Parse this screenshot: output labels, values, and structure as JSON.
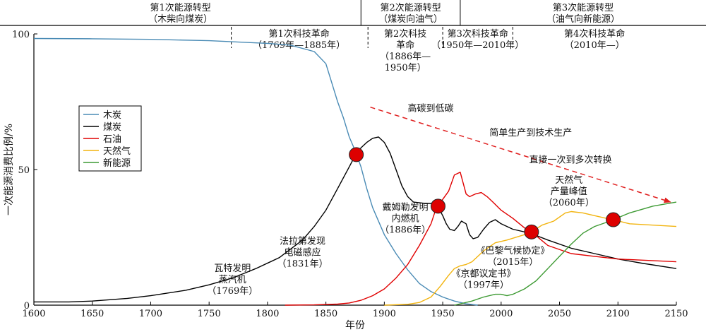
{
  "chart_data": {
    "type": "line",
    "xlabel": "年份",
    "ylabel": "一次能源消费比例/%",
    "xlim": [
      1600,
      2150
    ],
    "ylim": [
      0,
      100
    ],
    "xticks": [
      1600,
      1650,
      1700,
      1750,
      1800,
      1850,
      1900,
      1950,
      2000,
      2050,
      2100,
      2150
    ],
    "yticks": [
      0,
      50,
      100
    ],
    "legend_position": "left",
    "transitions": [
      {
        "name": "第1次能源转型",
        "desc": "（木柴向煤炭）",
        "start": 1600,
        "end": 1880
      },
      {
        "name": "第2次能源转型",
        "desc": "（煤炭向油气）",
        "start": 1880,
        "end": 1965
      },
      {
        "name": "第3次能源转型",
        "desc": "（油气向新能源）",
        "start": 1965,
        "end": 2150
      }
    ],
    "revolutions": [
      {
        "lines": [
          "第1次科技革命",
          "（1769年—1885年）"
        ],
        "start": 1769,
        "end": 1885
      },
      {
        "lines": [
          "第2次科技",
          "革命",
          "（1886年—",
          "1950年）"
        ],
        "start": 1886,
        "end": 1950
      },
      {
        "lines": [
          "第3次科技革命",
          "（1950年—2010年）"
        ],
        "start": 1950,
        "end": 2010
      },
      {
        "lines": [
          "第4次科技革命",
          "（2010年—）"
        ],
        "start": 2010,
        "end": 2150
      }
    ],
    "series": [
      {
        "name": "木炭",
        "color": "#4a8bb5",
        "points": [
          [
            1600,
            98.3
          ],
          [
            1650,
            98.2
          ],
          [
            1700,
            98
          ],
          [
            1750,
            97.5
          ],
          [
            1800,
            96.5
          ],
          [
            1820,
            95.8
          ],
          [
            1840,
            93.5
          ],
          [
            1850,
            89
          ],
          [
            1855,
            82
          ],
          [
            1860,
            75
          ],
          [
            1865,
            69
          ],
          [
            1870,
            62
          ],
          [
            1875,
            57
          ],
          [
            1880,
            51
          ],
          [
            1885,
            43
          ],
          [
            1890,
            36
          ],
          [
            1900,
            26
          ],
          [
            1910,
            19
          ],
          [
            1920,
            13
          ],
          [
            1930,
            8
          ],
          [
            1940,
            5
          ],
          [
            1950,
            3
          ],
          [
            1960,
            1.5
          ],
          [
            1970,
            0.5
          ],
          [
            1980,
            0
          ]
        ]
      },
      {
        "name": "煤炭",
        "color": "#000000",
        "points": [
          [
            1600,
            1.2
          ],
          [
            1630,
            1.2
          ],
          [
            1650,
            1.5
          ],
          [
            1680,
            2.5
          ],
          [
            1700,
            3.5
          ],
          [
            1730,
            5.5
          ],
          [
            1750,
            7.5
          ],
          [
            1770,
            10
          ],
          [
            1790,
            13.5
          ],
          [
            1810,
            17.5
          ],
          [
            1830,
            24
          ],
          [
            1840,
            29
          ],
          [
            1850,
            35
          ],
          [
            1860,
            43
          ],
          [
            1870,
            51
          ],
          [
            1876,
            56
          ],
          [
            1880,
            58
          ],
          [
            1885,
            60
          ],
          [
            1890,
            61.5
          ],
          [
            1895,
            62
          ],
          [
            1900,
            60
          ],
          [
            1905,
            56
          ],
          [
            1910,
            50
          ],
          [
            1915,
            44
          ],
          [
            1920,
            40
          ],
          [
            1925,
            38
          ],
          [
            1935,
            37.5
          ],
          [
            1940,
            37.5
          ],
          [
            1945,
            37
          ],
          [
            1950,
            33
          ],
          [
            1953,
            30
          ],
          [
            1956,
            28
          ],
          [
            1960,
            27.5
          ],
          [
            1963,
            29
          ],
          [
            1966,
            31
          ],
          [
            1970,
            30
          ],
          [
            1973,
            26
          ],
          [
            1976,
            24.5
          ],
          [
            1980,
            25
          ],
          [
            1985,
            28
          ],
          [
            1990,
            30.5
          ],
          [
            1995,
            31.5
          ],
          [
            2000,
            30
          ],
          [
            2010,
            28
          ],
          [
            2025,
            26.5
          ],
          [
            2040,
            24
          ],
          [
            2060,
            21
          ],
          [
            2080,
            19
          ],
          [
            2100,
            17
          ],
          [
            2120,
            15.5
          ],
          [
            2150,
            13.5
          ]
        ]
      },
      {
        "name": "石油",
        "color": "#e00000",
        "points": [
          [
            1815,
            0
          ],
          [
            1840,
            0.1
          ],
          [
            1860,
            0.4
          ],
          [
            1870,
            0.8
          ],
          [
            1880,
            1.8
          ],
          [
            1890,
            3.5
          ],
          [
            1900,
            6
          ],
          [
            1910,
            10
          ],
          [
            1920,
            15
          ],
          [
            1930,
            22
          ],
          [
            1940,
            30
          ],
          [
            1945,
            36.5
          ],
          [
            1950,
            39
          ],
          [
            1955,
            42
          ],
          [
            1960,
            48
          ],
          [
            1965,
            49
          ],
          [
            1970,
            41
          ],
          [
            1973,
            40
          ],
          [
            1978,
            41
          ],
          [
            1983,
            41.5
          ],
          [
            1988,
            40
          ],
          [
            1993,
            38
          ],
          [
            2000,
            35
          ],
          [
            2010,
            32
          ],
          [
            2020,
            28.5
          ],
          [
            2026,
            27
          ],
          [
            2040,
            22
          ],
          [
            2060,
            19
          ],
          [
            2080,
            18
          ],
          [
            2100,
            17
          ],
          [
            2150,
            16
          ]
        ]
      },
      {
        "name": "天然气",
        "color": "#f2b40f",
        "points": [
          [
            1900,
            0
          ],
          [
            1920,
            0.3
          ],
          [
            1930,
            1
          ],
          [
            1940,
            3
          ],
          [
            1948,
            7
          ],
          [
            1955,
            11
          ],
          [
            1960,
            13.5
          ],
          [
            1965,
            14.5
          ],
          [
            1970,
            15
          ],
          [
            1975,
            16
          ],
          [
            1985,
            20
          ],
          [
            1995,
            23
          ],
          [
            2005,
            24
          ],
          [
            2020,
            26
          ],
          [
            2026,
            27
          ],
          [
            2035,
            29.5
          ],
          [
            2045,
            31
          ],
          [
            2055,
            34
          ],
          [
            2060,
            34.5
          ],
          [
            2070,
            34
          ],
          [
            2080,
            33
          ],
          [
            2090,
            32
          ],
          [
            2096,
            31.5
          ],
          [
            2110,
            30
          ],
          [
            2130,
            29.5
          ],
          [
            2150,
            29
          ]
        ]
      },
      {
        "name": "新能源",
        "color": "#3d9a33",
        "points": [
          [
            1960,
            0
          ],
          [
            1975,
            1.5
          ],
          [
            1985,
            3
          ],
          [
            1995,
            4
          ],
          [
            2000,
            4
          ],
          [
            2005,
            3.5
          ],
          [
            2010,
            4
          ],
          [
            2020,
            6
          ],
          [
            2030,
            9
          ],
          [
            2040,
            13.5
          ],
          [
            2050,
            18
          ],
          [
            2060,
            22.5
          ],
          [
            2070,
            26.5
          ],
          [
            2080,
            29
          ],
          [
            2090,
            30.5
          ],
          [
            2096,
            31.5
          ],
          [
            2110,
            34
          ],
          [
            2130,
            36.5
          ],
          [
            2150,
            38
          ]
        ]
      }
    ],
    "markers": [
      [
        1876,
        55.5
      ],
      [
        1946,
        36.5
      ],
      [
        2026,
        27
      ],
      [
        2096,
        31.5
      ]
    ],
    "marker_color": "#dd0000",
    "arrow": {
      "from": [
        1888,
        73
      ],
      "to": [
        2145,
        38
      ],
      "color": "#e02020"
    },
    "annotations": [
      {
        "lines": [
          "高碳到低碳"
        ],
        "x": 1920,
        "y": 71.5,
        "anchor": "start"
      },
      {
        "lines": [
          "简单生产到技术生产"
        ],
        "x": 1990,
        "y": 62.5,
        "anchor": "start"
      },
      {
        "lines": [
          "直接一次到多次转换"
        ],
        "x": 2024,
        "y": 52.5,
        "anchor": "start"
      },
      {
        "lines": [
          "天然气",
          "产量峰值",
          "（2060年）"
        ],
        "x": 2058,
        "y": 45,
        "anchor": "middle"
      },
      {
        "lines": [
          "戴姆勒发明",
          "内燃机",
          "（1886年）"
        ],
        "x": 1918,
        "y": 35,
        "anchor": "middle"
      },
      {
        "lines": [
          "法拉第发现",
          "电磁感应",
          "（1831年）"
        ],
        "x": 1830,
        "y": 22.5,
        "anchor": "middle"
      },
      {
        "lines": [
          "《巴黎气候协定》",
          "（2015年）"
        ],
        "x": 2010,
        "y": 19,
        "anchor": "middle"
      },
      {
        "lines": [
          "瓦特发明",
          "蒸汽机",
          "（1769年）"
        ],
        "x": 1770,
        "y": 12.5,
        "anchor": "middle"
      },
      {
        "lines": [
          "《京都议定书》",
          "（1997年）"
        ],
        "x": 1985,
        "y": 10.5,
        "anchor": "middle"
      }
    ]
  }
}
